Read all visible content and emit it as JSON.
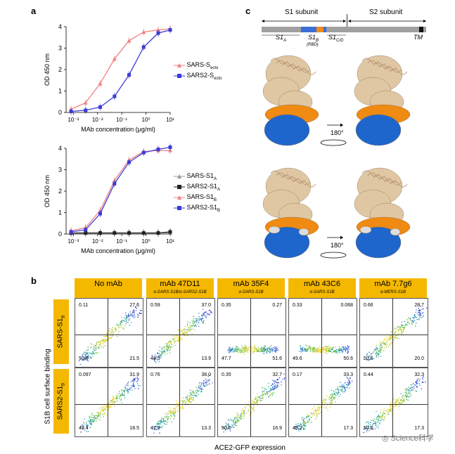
{
  "panel_letters": {
    "a": "a",
    "b": "b",
    "c": "c"
  },
  "chart_data": [
    {
      "type": "line",
      "xlabel": "MAb concentration (μg/ml)",
      "ylabel": "OD 450 nm",
      "x_scale": "log",
      "xlim": [
        0.0005,
        10
      ],
      "ylim": [
        0,
        4
      ],
      "x_tick_labels": [
        "10⁻³",
        "10⁻²",
        "10⁻¹",
        "10⁰",
        "10¹"
      ],
      "y_tick_labels": [
        "0",
        "1",
        "2",
        "3",
        "4"
      ],
      "legend_position": "right",
      "series": [
        {
          "name": "SARS-S",
          "name_sub": "ecto",
          "color": "#f08080",
          "marker": "triangle",
          "x": [
            0.0008,
            0.0032,
            0.0128,
            0.05,
            0.2,
            0.8,
            3.2,
            10
          ],
          "y": [
            0.15,
            0.45,
            1.35,
            2.5,
            3.35,
            3.75,
            3.85,
            3.9
          ]
        },
        {
          "name": "SARS2-S",
          "name_sub": "ecto",
          "color": "#3b3bd6",
          "marker": "square",
          "x": [
            0.0008,
            0.0032,
            0.0128,
            0.05,
            0.2,
            0.8,
            3.2,
            10
          ],
          "y": [
            0.05,
            0.1,
            0.25,
            0.75,
            1.75,
            3.05,
            3.7,
            3.85
          ]
        }
      ]
    },
    {
      "type": "line",
      "xlabel": "MAb concentration (μg/ml)",
      "ylabel": "OD 450 nm",
      "x_scale": "log",
      "xlim": [
        0.0005,
        10
      ],
      "ylim": [
        0,
        4
      ],
      "x_tick_labels": [
        "10⁻³",
        "10⁻²",
        "10⁻¹",
        "10⁰",
        "10¹"
      ],
      "y_tick_labels": [
        "0",
        "1",
        "2",
        "3",
        "4"
      ],
      "legend_position": "right",
      "series": [
        {
          "name": "SARS-S1",
          "name_sub": "A",
          "color": "#999999",
          "marker": "triangle",
          "x": [
            0.0008,
            0.0032,
            0.0128,
            0.05,
            0.2,
            0.8,
            3.2,
            10
          ],
          "y": [
            0.05,
            0.05,
            0.05,
            0.05,
            0.05,
            0.05,
            0.05,
            0.05
          ]
        },
        {
          "name": "SARS2-S1",
          "name_sub": "A",
          "color": "#222222",
          "marker": "square",
          "x": [
            0.0008,
            0.0032,
            0.0128,
            0.05,
            0.2,
            0.8,
            3.2,
            10
          ],
          "y": [
            0.05,
            0.05,
            0.05,
            0.05,
            0.05,
            0.05,
            0.05,
            0.1
          ]
        },
        {
          "name": "SARS-S1",
          "name_sub": "B",
          "color": "#f08080",
          "marker": "triangle",
          "x": [
            0.0008,
            0.0032,
            0.0128,
            0.05,
            0.2,
            0.8,
            3.2,
            10
          ],
          "y": [
            0.15,
            0.3,
            1.1,
            2.5,
            3.45,
            3.85,
            3.9,
            3.9
          ]
        },
        {
          "name": "SARS2-S1",
          "name_sub": "B",
          "color": "#3b3bd6",
          "marker": "square",
          "x": [
            0.0008,
            0.0032,
            0.0128,
            0.05,
            0.2,
            0.8,
            3.2,
            10
          ],
          "y": [
            0.1,
            0.2,
            0.95,
            2.35,
            3.35,
            3.8,
            3.95,
            4.05
          ]
        }
      ]
    }
  ],
  "domain_bar": {
    "s1_label": "S1 subunit",
    "s2_label": "S2 subunit",
    "s1a": "S1",
    "s1a_sub": "A",
    "s1b": "S1",
    "s1b_sub": "B",
    "rbd": "(RBD)",
    "s1cd": "S1",
    "s1cd_sub": "C/D",
    "tm": "TM",
    "colors": {
      "bar": "#a0a0a0",
      "s1b": "#3b6fd6",
      "rbd": "#f08a1e",
      "tm": "#111111"
    }
  },
  "structure": {
    "rotation_label_top": "180°",
    "rotation_label_bottom": "180°",
    "colors": {
      "backbone": "#e0c7a4",
      "orange": "#ef8a12",
      "blue": "#1f66cc",
      "grey": "#dddddd"
    }
  },
  "flow": {
    "headers": [
      {
        "main": "No mAb",
        "sub": ""
      },
      {
        "main": "mAb 47D11",
        "sub": "α-SARS-S1B/α-SARS2-S1B"
      },
      {
        "main": "mAb 35F4",
        "sub": "α-SARS-S1B"
      },
      {
        "main": "mAb 43C6",
        "sub": "α-SARS-S1B"
      },
      {
        "main": "mAb 7.7g6",
        "sub": "α-MERS-S1B"
      }
    ],
    "row_labels": [
      {
        "text": "SARS-S1",
        "sub": "B"
      },
      {
        "text": "SARS2-S1",
        "sub": "B"
      }
    ],
    "y_axis_label": "S1B cell surface binding",
    "x_axis_label": "ACE2-GFP expression",
    "plots": [
      [
        {
          "tl": "0.11",
          "tr": "27.6",
          "bl": "50.8",
          "br": "21.5",
          "pattern": "diag"
        },
        {
          "tl": "0.59",
          "tr": "37.0",
          "bl": "48.5",
          "br": "13.9",
          "pattern": "diag"
        },
        {
          "tl": "0.35",
          "tr": "0.27",
          "bl": "47.7",
          "br": "51.6",
          "pattern": "flat"
        },
        {
          "tl": "0.33",
          "tr": "0.068",
          "bl": "49.6",
          "br": "50.6",
          "pattern": "flat"
        },
        {
          "tl": "0.66",
          "tr": "28.7",
          "bl": "50.6",
          "br": "20.0",
          "pattern": "diag"
        }
      ],
      [
        {
          "tl": "0.097",
          "tr": "31.9",
          "bl": "49.4",
          "br": "18.5",
          "pattern": "diag"
        },
        {
          "tl": "0.76",
          "tr": "38.0",
          "bl": "47.9",
          "br": "13.3",
          "pattern": "diag"
        },
        {
          "tl": "0.35",
          "tr": "32.7",
          "bl": "50.0",
          "br": "16.9",
          "pattern": "diag"
        },
        {
          "tl": "0.17",
          "tr": "33.3",
          "bl": "49.2",
          "br": "17.3",
          "pattern": "diag"
        },
        {
          "tl": "0.44",
          "tr": "32.3",
          "bl": "50.0",
          "br": "17.3",
          "pattern": "diag"
        }
      ]
    ]
  },
  "watermark": "Science科学"
}
